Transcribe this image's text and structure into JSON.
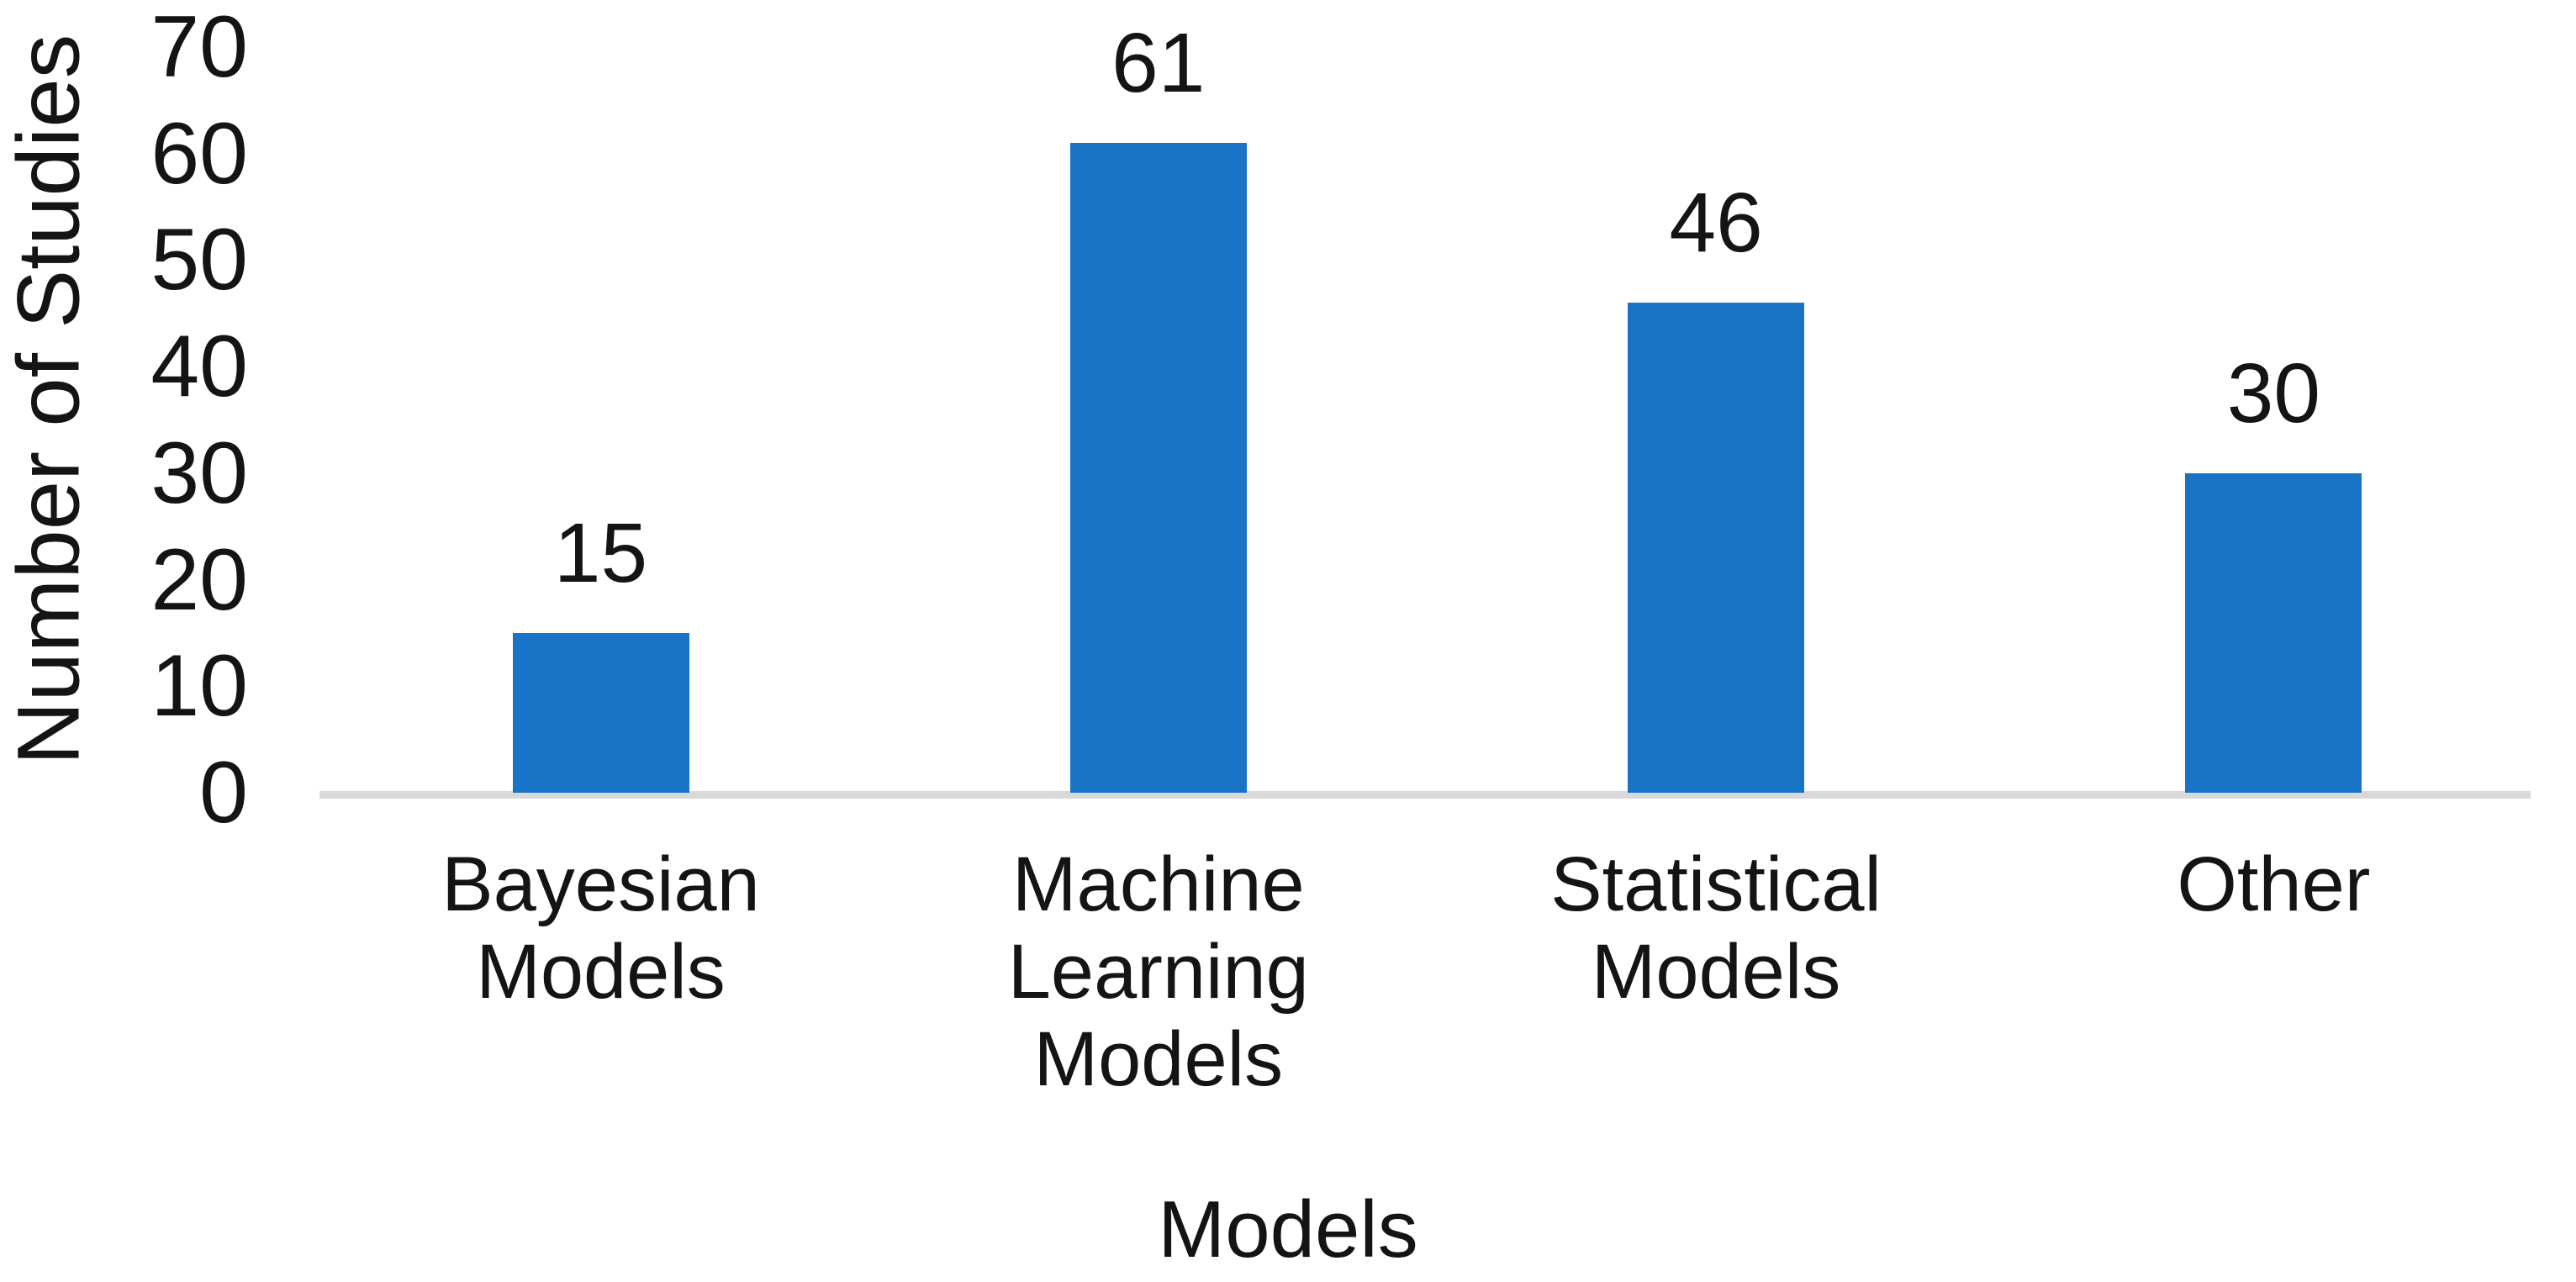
{
  "chart_data": {
    "type": "bar",
    "categories": [
      "Bayesian Models",
      "Machine Learning Models",
      "Statistical Models",
      "Other"
    ],
    "values": [
      15,
      61,
      46,
      30
    ],
    "data_labels": [
      "15",
      "61",
      "46",
      "30"
    ],
    "title": "",
    "xlabel": "Models",
    "ylabel": "Number of Studies",
    "ylim": [
      0,
      70
    ],
    "ytick_step": 10,
    "ytick_labels": [
      "0",
      "10",
      "20",
      "30",
      "40",
      "50",
      "60",
      "70"
    ],
    "grid": false,
    "legend_position": "none",
    "colors": {
      "bar": "#1974C8",
      "axis_line": "#D9D9D9",
      "text": "#141414",
      "background": "#FFFFFF"
    }
  }
}
